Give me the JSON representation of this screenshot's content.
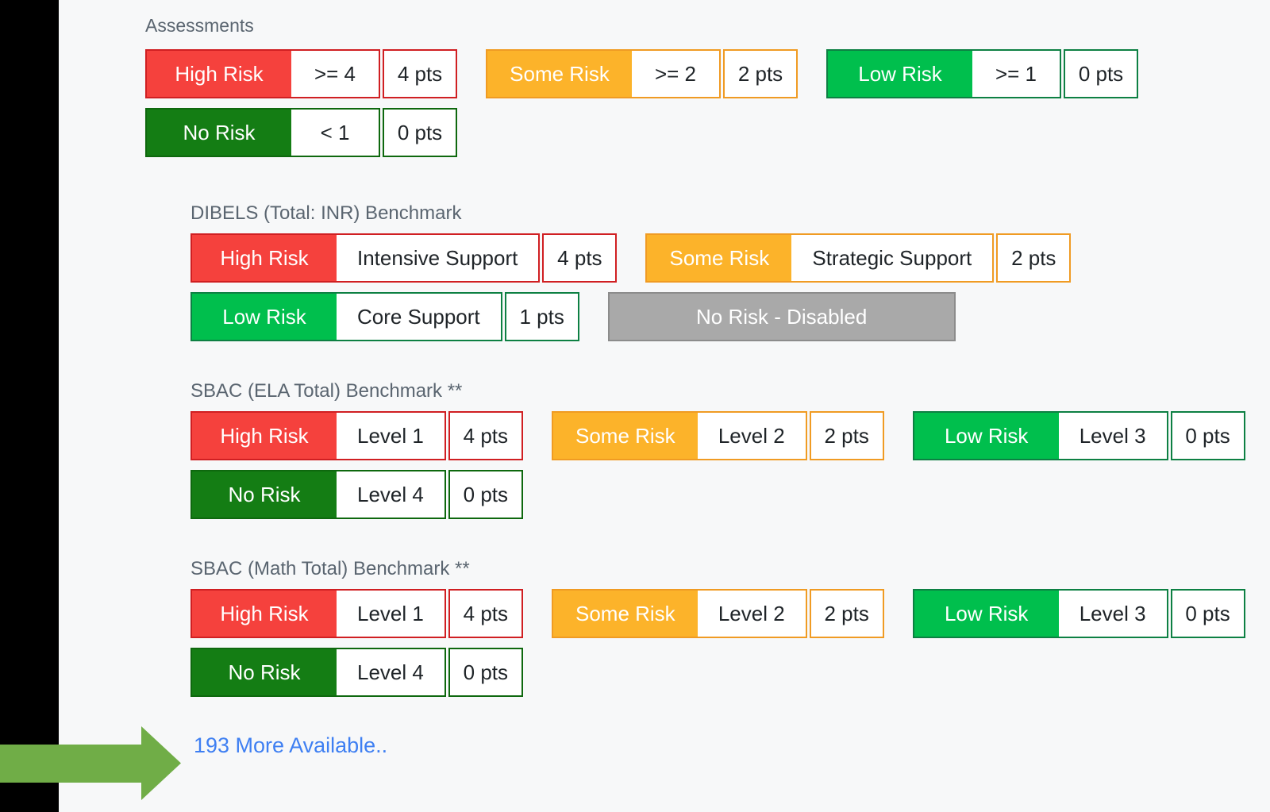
{
  "page": {
    "background": "#f7f8f9",
    "sidebar_color": "#000000",
    "heading": "Assessments"
  },
  "variants": {
    "red": {
      "fill": "#f5413d",
      "border": "#d01f22"
    },
    "orange": {
      "fill": "#fcb32a",
      "border": "#f09b23"
    },
    "green": {
      "fill": "#00bf4d",
      "border": "#0d8043"
    },
    "darkgreen": {
      "fill": "#147d14",
      "border": "#0e680e"
    },
    "gray": {
      "fill": "#a9a9a9",
      "border": "#8c8c8c"
    }
  },
  "assessments": {
    "rows": [
      [
        {
          "risk": "High Risk",
          "value": ">= 4",
          "pts": "4 pts",
          "variant": "red"
        },
        {
          "risk": "Some Risk",
          "value": ">= 2",
          "pts": "2 pts",
          "variant": "orange"
        },
        {
          "risk": "Low Risk",
          "value": ">= 1",
          "pts": "0 pts",
          "variant": "green"
        }
      ],
      [
        {
          "risk": "No Risk",
          "value": "< 1",
          "pts": "0 pts",
          "variant": "darkgreen"
        }
      ]
    ]
  },
  "benchmarks": [
    {
      "title": "DIBELS (Total: INR) Benchmark",
      "rows": [
        [
          {
            "risk": "High Risk",
            "value": "Intensive Support",
            "pts": "4 pts",
            "variant": "red"
          },
          {
            "risk": "Some Risk",
            "value": "Strategic Support",
            "pts": "2 pts",
            "variant": "orange"
          }
        ],
        [
          {
            "risk": "Low Risk",
            "value": "Core Support",
            "pts": "1 pts",
            "variant": "green"
          },
          {
            "risk": "No Risk - Disabled",
            "variant": "gray",
            "disabled": true
          }
        ]
      ]
    },
    {
      "title": "SBAC (ELA Total) Benchmark **",
      "rows": [
        [
          {
            "risk": "High Risk",
            "value": "Level 1",
            "pts": "4 pts",
            "variant": "red"
          },
          {
            "risk": "Some Risk",
            "value": "Level 2",
            "pts": "2 pts",
            "variant": "orange"
          },
          {
            "risk": "Low Risk",
            "value": "Level 3",
            "pts": "0 pts",
            "variant": "green"
          }
        ],
        [
          {
            "risk": "No Risk",
            "value": "Level 4",
            "pts": "0 pts",
            "variant": "darkgreen"
          }
        ]
      ]
    },
    {
      "title": "SBAC (Math Total) Benchmark **",
      "rows": [
        [
          {
            "risk": "High Risk",
            "value": "Level 1",
            "pts": "4 pts",
            "variant": "red"
          },
          {
            "risk": "Some Risk",
            "value": "Level 2",
            "pts": "2 pts",
            "variant": "orange"
          },
          {
            "risk": "Low Risk",
            "value": "Level 3",
            "pts": "0 pts",
            "variant": "green"
          }
        ],
        [
          {
            "risk": "No Risk",
            "value": "Level 4",
            "pts": "0 pts",
            "variant": "darkgreen"
          }
        ]
      ]
    }
  ],
  "footer": {
    "more_link_label": "193 More Available.."
  },
  "annotation": {
    "arrow_color": "#70ad47"
  }
}
